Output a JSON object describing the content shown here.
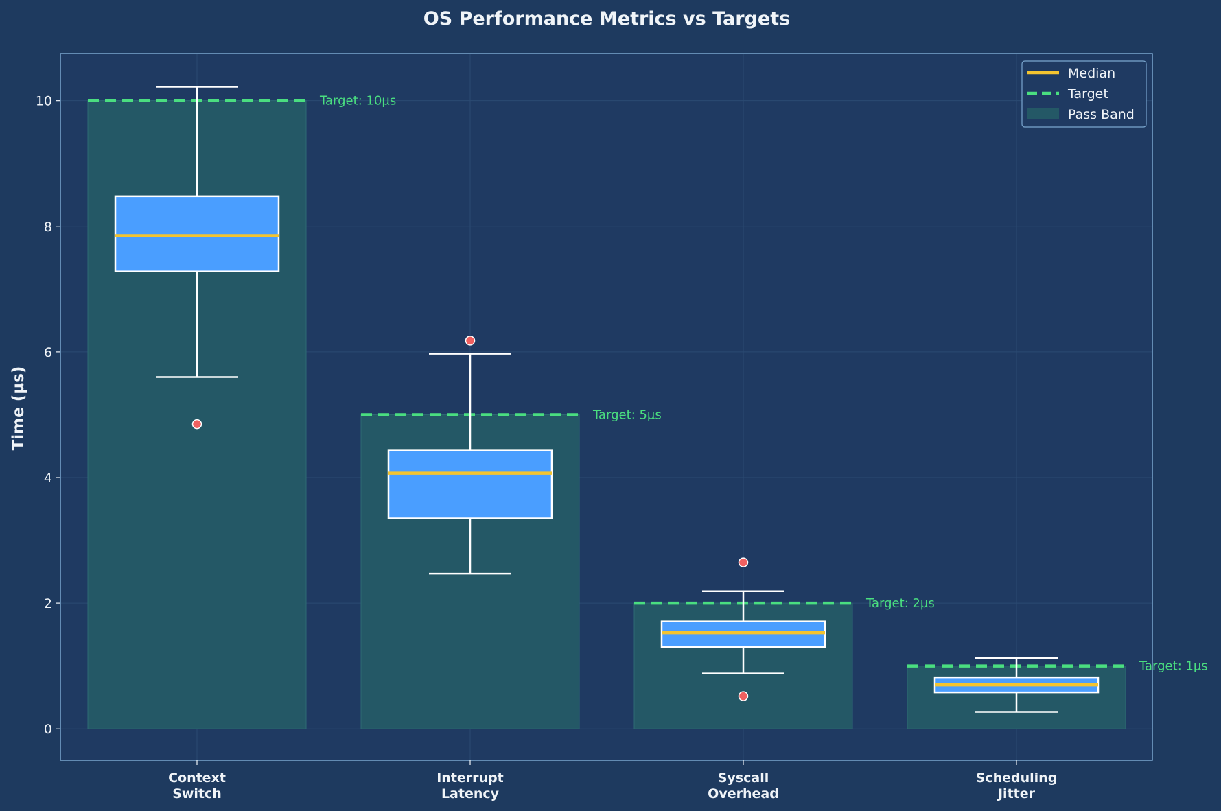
{
  "chart_data": {
    "type": "boxplot",
    "title": "OS Performance Metrics vs Targets",
    "ylabel": "Time (µs)",
    "xlabel": "",
    "ylim": [
      -0.5,
      10.75
    ],
    "yticks": [
      0,
      2,
      4,
      6,
      8,
      10
    ],
    "grid": true,
    "legend_position": "top-right",
    "legend": [
      {
        "label": "Median",
        "kind": "line",
        "color": "#f4c430"
      },
      {
        "label": "Target",
        "kind": "dashed",
        "color": "#4ade80"
      },
      {
        "label": "Pass Band",
        "kind": "patch",
        "color": "#245866"
      }
    ],
    "categories": [
      {
        "lines": [
          "Context",
          "Switch"
        ],
        "target": 10,
        "target_label": "Target: 10µs",
        "whisker_low": 5.6,
        "q1": 7.28,
        "median": 7.85,
        "q3": 8.48,
        "whisker_high": 10.22,
        "outliers": [
          4.85
        ]
      },
      {
        "lines": [
          "Interrupt",
          "Latency"
        ],
        "target": 5,
        "target_label": "Target: 5µs",
        "whisker_low": 2.47,
        "q1": 3.35,
        "median": 4.07,
        "q3": 4.43,
        "whisker_high": 5.97,
        "outliers": [
          6.18
        ]
      },
      {
        "lines": [
          "Syscall",
          "Overhead"
        ],
        "target": 2,
        "target_label": "Target: 2µs",
        "whisker_low": 0.88,
        "q1": 1.3,
        "median": 1.53,
        "q3": 1.71,
        "whisker_high": 2.19,
        "outliers": [
          2.65,
          0.52
        ]
      },
      {
        "lines": [
          "Scheduling",
          "Jitter"
        ],
        "target": 1,
        "target_label": "Target: 1µs",
        "whisker_low": 0.27,
        "q1": 0.58,
        "median": 0.7,
        "q3": 0.82,
        "whisker_high": 1.13,
        "outliers": []
      }
    ],
    "colors": {
      "background": "#1e3a5f",
      "box_fill": "#4a9eff",
      "box_edge": "#ffffff",
      "median": "#f4c430",
      "target": "#4ade80",
      "pass_band": "#245866",
      "outlier": "#f06060",
      "axes_edge": "#7aa6cf",
      "text": "#f0f4f8"
    }
  }
}
